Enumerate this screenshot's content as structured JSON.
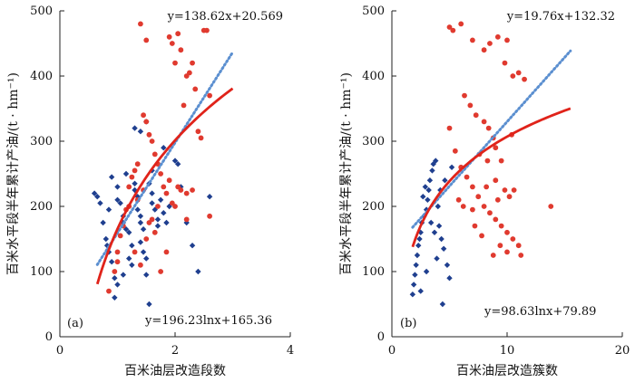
{
  "chart_data": [
    {
      "type": "scatter",
      "panel": "(a)",
      "xlabel": "百米油层改造段数",
      "ylabel": "百米水平段半年累计产油/(t · hm⁻¹)",
      "xlim": [
        0,
        4
      ],
      "ylim": [
        0,
        500
      ],
      "xticks": [
        0,
        2,
        4
      ],
      "yticks": [
        0,
        100,
        200,
        300,
        400,
        500
      ],
      "linear_fit": {
        "equation": "y=138.62x+20.569",
        "slope": 138.62,
        "intercept": 20.569,
        "x_range": [
          0.65,
          3.0
        ]
      },
      "log_fit": {
        "equation": "y=196.23lnx+165.36",
        "a": 196.23,
        "b": 165.36,
        "x_range": [
          0.65,
          3.0
        ]
      },
      "series": [
        {
          "name": "blue",
          "color": "#1f3f8f",
          "marker": "diamond",
          "points": [
            [
              0.6,
              220
            ],
            [
              0.65,
              215
            ],
            [
              0.7,
              205
            ],
            [
              0.75,
              175
            ],
            [
              0.8,
              150
            ],
            [
              0.82,
              140
            ],
            [
              0.85,
              130
            ],
            [
              0.9,
              115
            ],
            [
              0.95,
              90
            ],
            [
              0.9,
              245
            ],
            [
              1.0,
              230
            ],
            [
              1.0,
              210
            ],
            [
              1.05,
              205
            ],
            [
              1.1,
              185
            ],
            [
              1.1,
              175
            ],
            [
              1.15,
              165
            ],
            [
              1.2,
              160
            ],
            [
              1.2,
              120
            ],
            [
              1.25,
              110
            ],
            [
              1.3,
              235
            ],
            [
              1.3,
              225
            ],
            [
              1.35,
              215
            ],
            [
              1.35,
              195
            ],
            [
              1.4,
              185
            ],
            [
              1.4,
              175
            ],
            [
              1.4,
              145
            ],
            [
              1.45,
              130
            ],
            [
              1.5,
              120
            ],
            [
              1.5,
              95
            ],
            [
              1.55,
              235
            ],
            [
              1.6,
              220
            ],
            [
              1.6,
              205
            ],
            [
              1.65,
              195
            ],
            [
              1.7,
              180
            ],
            [
              1.7,
              170
            ],
            [
              1.75,
              210
            ],
            [
              1.8,
              190
            ],
            [
              1.85,
              175
            ],
            [
              1.9,
              200
            ],
            [
              2.0,
              270
            ],
            [
              2.05,
              265
            ],
            [
              2.2,
              175
            ],
            [
              2.3,
              140
            ],
            [
              2.4,
              100
            ],
            [
              2.6,
              215
            ],
            [
              1.4,
              315
            ],
            [
              1.5,
              330
            ],
            [
              1.3,
              320
            ],
            [
              1.55,
              50
            ],
            [
              1.0,
              80
            ],
            [
              1.1,
              95
            ],
            [
              0.95,
              60
            ],
            [
              1.45,
              165
            ],
            [
              1.25,
              140
            ],
            [
              1.6,
              255
            ],
            [
              1.8,
              290
            ],
            [
              2.1,
              230
            ],
            [
              1.15,
              250
            ],
            [
              0.85,
              195
            ],
            [
              1.2,
              200
            ]
          ]
        },
        {
          "name": "red",
          "color": "#e03a2f",
          "marker": "circle",
          "points": [
            [
              0.85,
              70
            ],
            [
              0.95,
              100
            ],
            [
              1.0,
              115
            ],
            [
              1.05,
              155
            ],
            [
              1.1,
              170
            ],
            [
              1.15,
              195
            ],
            [
              1.2,
              230
            ],
            [
              1.25,
              245
            ],
            [
              1.3,
              255
            ],
            [
              1.35,
              265
            ],
            [
              1.4,
              480
            ],
            [
              1.45,
              340
            ],
            [
              1.5,
              455
            ],
            [
              1.5,
              330
            ],
            [
              1.55,
              310
            ],
            [
              1.6,
              300
            ],
            [
              1.65,
              280
            ],
            [
              1.7,
              265
            ],
            [
              1.75,
              250
            ],
            [
              1.8,
              230
            ],
            [
              1.85,
              220
            ],
            [
              1.9,
              460
            ],
            [
              1.95,
              450
            ],
            [
              2.0,
              420
            ],
            [
              2.05,
              465
            ],
            [
              2.1,
              440
            ],
            [
              2.15,
              355
            ],
            [
              2.2,
              400
            ],
            [
              2.25,
              405
            ],
            [
              2.3,
              420
            ],
            [
              2.35,
              380
            ],
            [
              2.4,
              315
            ],
            [
              2.45,
              305
            ],
            [
              2.5,
              470
            ],
            [
              2.55,
              470
            ],
            [
              2.6,
              370
            ],
            [
              2.05,
              230
            ],
            [
              2.1,
              225
            ],
            [
              2.2,
              220
            ],
            [
              2.3,
              225
            ],
            [
              1.3,
              130
            ],
            [
              1.4,
              110
            ],
            [
              1.5,
              150
            ],
            [
              1.6,
              180
            ],
            [
              1.75,
              100
            ],
            [
              1.85,
              130
            ],
            [
              2.6,
              185
            ],
            [
              1.2,
              200
            ],
            [
              1.0,
              130
            ],
            [
              1.35,
              210
            ],
            [
              1.55,
              175
            ],
            [
              1.7,
              200
            ],
            [
              1.9,
              240
            ],
            [
              1.95,
              205
            ],
            [
              2.0,
              200
            ],
            [
              2.2,
              180
            ],
            [
              1.45,
              225
            ],
            [
              1.65,
              160
            ]
          ]
        }
      ]
    },
    {
      "type": "scatter",
      "panel": "(b)",
      "xlabel": "百米油层改造簇数",
      "ylabel": "百米水平段半年累计产油/(t · hm⁻¹)",
      "xlim": [
        0,
        20
      ],
      "ylim": [
        0,
        500
      ],
      "xticks": [
        0,
        10,
        20
      ],
      "yticks": [
        0,
        100,
        200,
        300,
        400,
        500
      ],
      "linear_fit": {
        "equation": "y=19.76x+132.32",
        "slope": 19.76,
        "intercept": 132.32,
        "x_range": [
          1.8,
          15.5
        ]
      },
      "log_fit": {
        "equation": "y=98.63lnx+79.89",
        "a": 98.63,
        "b": 79.89,
        "x_range": [
          1.8,
          15.5
        ]
      },
      "series": [
        {
          "name": "blue",
          "color": "#1f3f8f",
          "marker": "diamond",
          "points": [
            [
              1.8,
              65
            ],
            [
              1.9,
              80
            ],
            [
              2.0,
              95
            ],
            [
              2.1,
              110
            ],
            [
              2.2,
              125
            ],
            [
              2.3,
              140
            ],
            [
              2.4,
              150
            ],
            [
              2.5,
              160
            ],
            [
              2.6,
              175
            ],
            [
              2.8,
              185
            ],
            [
              3.0,
              195
            ],
            [
              3.1,
              210
            ],
            [
              3.2,
              225
            ],
            [
              3.3,
              240
            ],
            [
              3.5,
              255
            ],
            [
              3.6,
              265
            ],
            [
              3.8,
              270
            ],
            [
              4.0,
              200
            ],
            [
              4.1,
              170
            ],
            [
              4.3,
              150
            ],
            [
              4.5,
              135
            ],
            [
              4.8,
              110
            ],
            [
              5.0,
              90
            ],
            [
              2.7,
              215
            ],
            [
              2.9,
              230
            ],
            [
              3.4,
              175
            ],
            [
              3.7,
              160
            ],
            [
              4.2,
              225
            ],
            [
              4.6,
              240
            ],
            [
              5.2,
              260
            ],
            [
              4.4,
              50
            ],
            [
              2.5,
              70
            ],
            [
              3.0,
              100
            ],
            [
              3.9,
              120
            ]
          ]
        },
        {
          "name": "red",
          "color": "#e03a2f",
          "marker": "circle",
          "points": [
            [
              5.0,
              475
            ],
            [
              5.3,
              470
            ],
            [
              6.0,
              480
            ],
            [
              7.0,
              455
            ],
            [
              8.0,
              440
            ],
            [
              8.5,
              450
            ],
            [
              9.2,
              460
            ],
            [
              10.0,
              455
            ],
            [
              9.8,
              420
            ],
            [
              10.5,
              400
            ],
            [
              11.0,
              405
            ],
            [
              11.5,
              395
            ],
            [
              8.0,
              330
            ],
            [
              8.4,
              320
            ],
            [
              8.8,
              305
            ],
            [
              9.0,
              290
            ],
            [
              9.5,
              270
            ],
            [
              6.3,
              370
            ],
            [
              6.8,
              355
            ],
            [
              7.3,
              340
            ],
            [
              5.0,
              320
            ],
            [
              5.5,
              285
            ],
            [
              6.0,
              260
            ],
            [
              6.5,
              245
            ],
            [
              7.0,
              230
            ],
            [
              7.5,
              215
            ],
            [
              8.0,
              200
            ],
            [
              8.5,
              190
            ],
            [
              9.0,
              180
            ],
            [
              9.5,
              170
            ],
            [
              10.0,
              160
            ],
            [
              10.5,
              150
            ],
            [
              11.0,
              140
            ],
            [
              8.2,
              230
            ],
            [
              9.0,
              240
            ],
            [
              9.8,
              225
            ],
            [
              10.2,
              215
            ],
            [
              10.6,
              225
            ],
            [
              7.2,
              170
            ],
            [
              7.8,
              155
            ],
            [
              8.8,
              125
            ],
            [
              9.4,
              140
            ],
            [
              10.0,
              130
            ],
            [
              11.2,
              125
            ],
            [
              13.8,
              200
            ],
            [
              6.2,
              200
            ],
            [
              7.0,
              195
            ],
            [
              8.3,
              270
            ],
            [
              9.2,
              210
            ],
            [
              10.4,
              310
            ],
            [
              7.6,
              280
            ],
            [
              5.8,
              210
            ]
          ]
        }
      ]
    }
  ]
}
